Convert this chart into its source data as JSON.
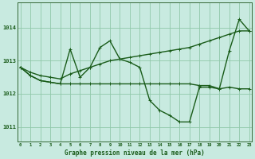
{
  "background_color": "#c8eae0",
  "grid_color": "#90c8aa",
  "line_color": "#1a5c1a",
  "xlabel": "Graphe pression niveau de la mer (hPa)",
  "ylim": [
    1010.55,
    1014.75
  ],
  "xlim": [
    -0.3,
    23.3
  ],
  "yticks": [
    1011,
    1012,
    1013,
    1014
  ],
  "xticks": [
    0,
    1,
    2,
    3,
    4,
    5,
    6,
    7,
    8,
    9,
    10,
    11,
    12,
    13,
    14,
    15,
    16,
    17,
    18,
    19,
    20,
    21,
    22,
    23
  ],
  "series": [
    {
      "x": [
        0,
        1,
        2,
        3,
        4,
        5,
        6,
        7,
        8,
        9,
        10,
        11,
        12,
        13,
        14,
        15,
        16,
        17,
        18,
        19,
        20,
        21,
        22,
        23
      ],
      "y": [
        1012.8,
        1012.65,
        1012.55,
        1012.5,
        1012.45,
        1012.6,
        1012.7,
        1012.8,
        1012.9,
        1013.0,
        1013.05,
        1013.1,
        1013.15,
        1013.2,
        1013.25,
        1013.3,
        1013.35,
        1013.4,
        1013.5,
        1013.6,
        1013.7,
        1013.8,
        1013.9,
        1013.9
      ],
      "lw": 1.0,
      "marker": "+"
    },
    {
      "x": [
        0,
        1,
        2,
        3,
        4,
        5,
        6,
        7,
        8,
        9,
        10,
        11,
        12,
        13,
        14,
        15,
        16,
        17,
        18,
        19,
        20,
        21,
        22,
        23
      ],
      "y": [
        1012.8,
        1012.55,
        1012.4,
        1012.35,
        1012.3,
        1013.35,
        1012.5,
        1012.8,
        1013.4,
        1013.6,
        1013.05,
        1012.95,
        1012.8,
        1011.8,
        1011.5,
        1011.35,
        1011.15,
        1011.15,
        1012.2,
        1012.2,
        1012.15,
        1013.3,
        1014.25,
        1013.9
      ],
      "lw": 1.0,
      "marker": "+"
    },
    {
      "x": [
        0,
        1,
        2,
        3,
        4,
        5,
        6,
        7,
        8,
        9,
        10,
        11,
        12,
        13,
        14,
        15,
        16,
        17,
        18,
        19,
        20,
        21,
        22,
        23
      ],
      "y": [
        1012.8,
        1012.55,
        1012.4,
        1012.35,
        1012.3,
        1012.3,
        1012.3,
        1012.3,
        1012.3,
        1012.3,
        1012.3,
        1012.3,
        1012.3,
        1012.3,
        1012.3,
        1012.3,
        1012.3,
        1012.3,
        1012.25,
        1012.25,
        1012.15,
        1012.2,
        1012.15,
        1012.15
      ],
      "lw": 1.0,
      "marker": "+"
    }
  ]
}
